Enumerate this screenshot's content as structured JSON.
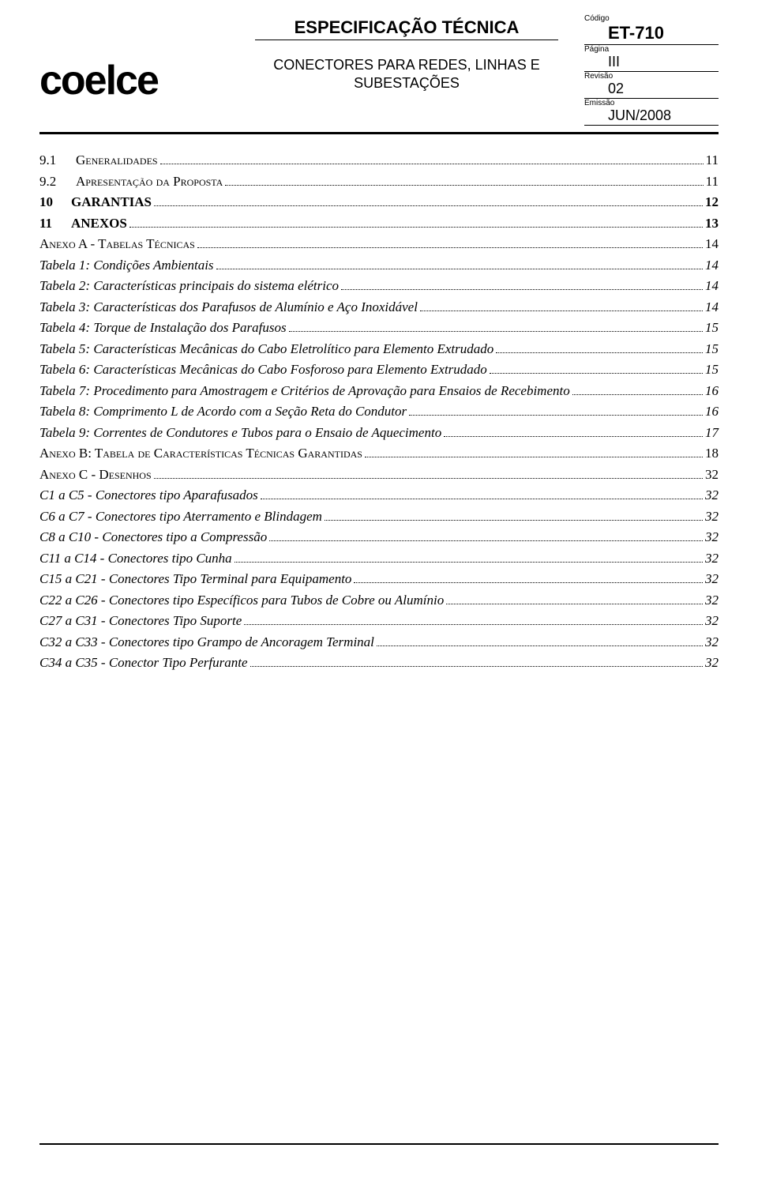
{
  "header": {
    "logo_text": "coelce",
    "doc_type": "ESPECIFICAÇÃO TÉCNICA",
    "doc_title_l1": "CONECTORES PARA REDES, LINHAS E",
    "doc_title_l2": "SUBESTAÇÕES",
    "meta": {
      "code_label": "Código",
      "code_value": "ET-710",
      "page_label": "Página",
      "page_value": "III",
      "rev_label": "Revisão",
      "rev_value": "02",
      "date_label": "Emissão",
      "date_value": "JUN/2008"
    }
  },
  "toc": [
    {
      "num": "9.1",
      "text": "Generalidades",
      "page": "11",
      "level": 2,
      "sc": true
    },
    {
      "num": "9.2",
      "text": "Apresentação da Proposta",
      "page": "11",
      "level": 2,
      "sc": true
    },
    {
      "num": "10",
      "text": "GARANTIAS",
      "page": "12",
      "level": 0
    },
    {
      "num": "11",
      "text": "ANEXOS",
      "page": "13",
      "level": 0
    },
    {
      "num": "",
      "text": "Anexo A - Tabelas Técnicas",
      "page": "14",
      "level": 2,
      "sc": true
    },
    {
      "num": "",
      "text": "Tabela 1: Condições Ambientais",
      "page": "14",
      "level": 1
    },
    {
      "num": "",
      "text": "Tabela 2: Características principais do sistema elétrico",
      "page": "14",
      "level": 1
    },
    {
      "num": "",
      "text": "Tabela 3: Características dos Parafusos de Alumínio e Aço Inoxidável",
      "page": "14",
      "level": 1
    },
    {
      "num": "",
      "text": "Tabela 4: Torque de Instalação dos Parafusos",
      "page": "15",
      "level": 1
    },
    {
      "num": "",
      "text": "Tabela 5: Características Mecânicas do Cabo Eletrolítico para Elemento Extrudado",
      "page": "15",
      "level": 1
    },
    {
      "num": "",
      "text": "Tabela 6: Características Mecânicas do Cabo Fosforoso para Elemento Extrudado",
      "page": "15",
      "level": 1
    },
    {
      "num": "",
      "text": "Tabela 7: Procedimento para Amostragem e Critérios de Aprovação para Ensaios de Recebimento",
      "page": "16",
      "level": 1
    },
    {
      "num": "",
      "text": "Tabela 8: Comprimento L de Acordo com a Seção Reta do Condutor",
      "page": "16",
      "level": 1
    },
    {
      "num": "",
      "text": "Tabela 9: Correntes de Condutores e Tubos para o Ensaio de Aquecimento",
      "page": "17",
      "level": 1
    },
    {
      "num": "",
      "text": "Anexo B: Tabela de Características Técnicas Garantidas",
      "page": "18",
      "level": 2,
      "sc": true
    },
    {
      "num": "",
      "text": "Anexo C - Desenhos",
      "page": "32",
      "level": 2,
      "sc": true
    },
    {
      "num": "",
      "text": "C1 a C5 - Conectores tipo Aparafusados",
      "page": "32",
      "level": 1
    },
    {
      "num": "",
      "text": "C6 a C7 - Conectores tipo Aterramento e Blindagem",
      "page": "32",
      "level": 1
    },
    {
      "num": "",
      "text": "C8 a C10 - Conectores tipo a Compressão",
      "page": "32",
      "level": 1
    },
    {
      "num": "",
      "text": "C11 a C14 - Conectores tipo Cunha",
      "page": "32",
      "level": 1
    },
    {
      "num": "",
      "text": "C15 a C21 - Conectores Tipo Terminal para Equipamento",
      "page": "32",
      "level": 1
    },
    {
      "num": "",
      "text": "C22 a C26 - Conectores tipo Específicos para Tubos de Cobre ou Alumínio",
      "page": "32",
      "level": 1
    },
    {
      "num": "",
      "text": "C27 a C31 - Conectores Tipo Suporte",
      "page": "32",
      "level": 1
    },
    {
      "num": "",
      "text": "C32 a C33 - Conectores tipo Grampo de Ancoragem Terminal",
      "page": "32",
      "level": 1
    },
    {
      "num": "",
      "text": "C34 a C35 - Conector Tipo Perfurante",
      "page": "32",
      "level": 1
    }
  ]
}
